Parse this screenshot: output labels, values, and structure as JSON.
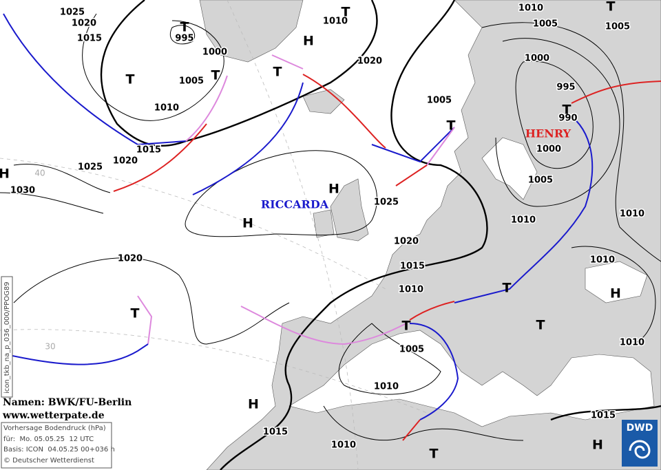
{
  "isobar_labels": [
    1025,
    1020,
    1015,
    995,
    1000,
    1005,
    1010,
    1015,
    1020,
    1025,
    1030,
    1010,
    1020,
    1005,
    1010,
    1005,
    1000,
    995,
    990,
    1000,
    1005,
    1010,
    1010,
    1005,
    1025,
    1020,
    1015,
    1010,
    1020,
    1010,
    1010,
    1005,
    1010,
    1015,
    1015,
    1010
  ],
  "pressure_centers": [
    "H",
    "T",
    "T",
    "T",
    "T",
    "T",
    "T",
    "T",
    "T",
    "H",
    "H",
    "H",
    "T",
    "T",
    "T",
    "T",
    "H",
    "H",
    "T",
    "H"
  ],
  "storm_names": {
    "high": "RICCARDA",
    "low": "HENRY"
  },
  "latitude_labels": [
    40,
    30
  ],
  "credits": {
    "names": "Namen: BWK/FU-Berlin",
    "website": "www.wetterpate.de"
  },
  "forecast_box": {
    "title": "Vorhersage Bodendruck (hPa)",
    "valid": "für:  Mo. 05.05.25  12 UTC",
    "basis": "Basis: ICON  04.05.25 00+036 h",
    "copyright": "© Deutscher Wetterdienst"
  },
  "product_code": "icon_tkb_na_p_036_000/PPOG89",
  "logo": "DWD"
}
